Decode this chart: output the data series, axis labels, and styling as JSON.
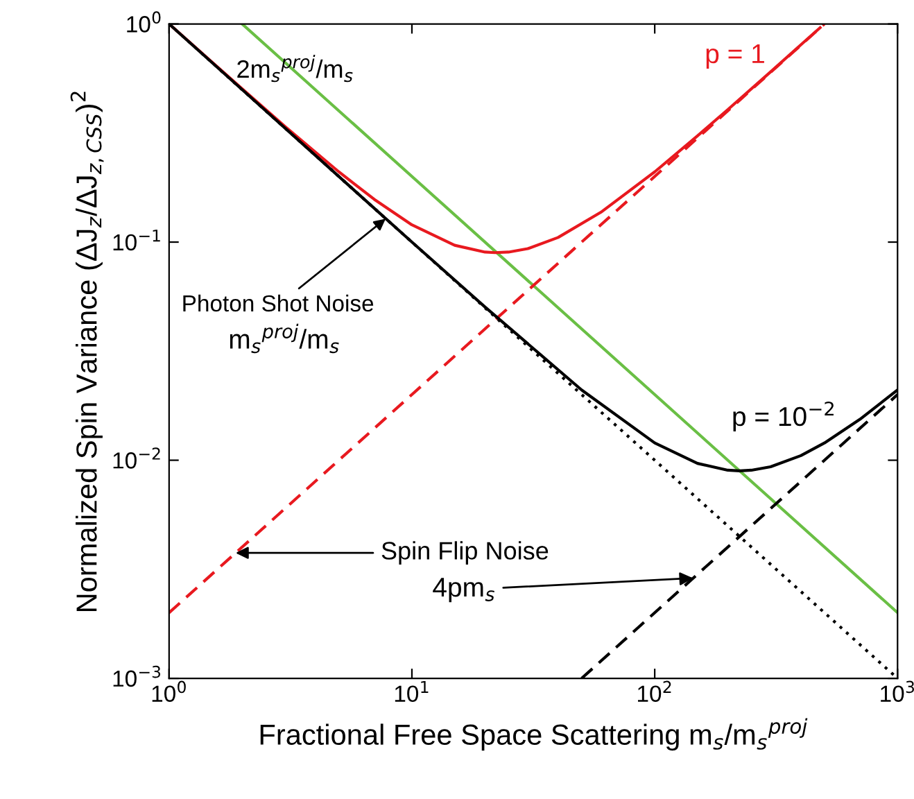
{
  "chart_data": {
    "type": "line",
    "xlabel": "Fractional Free Space Scattering m$_{s}$/m$_{s}$$^{proj}$",
    "ylabel": "Normalized Spin Variance (ΔJ$_{z}$/ΔJ$_{z,CSS}$)$^{2}$",
    "log": "xy",
    "grid": false,
    "legend": false,
    "marker": "none",
    "xlim": [
      1,
      1000
    ],
    "ylim": [
      0.001,
      1
    ],
    "xticks": [
      {
        "value": 1,
        "label": "10$^{0}$"
      },
      {
        "value": 10,
        "label": "10$^{1}$"
      },
      {
        "value": 100,
        "label": "10$^{2}$"
      },
      {
        "value": 1000,
        "label": "10$^{3}$"
      }
    ],
    "yticks": [
      {
        "value": 0.001,
        "label": "10$^{−3}$"
      },
      {
        "value": 0.01,
        "label": "10$^{−2}$"
      },
      {
        "value": 0.1,
        "label": "10$^{−1}$"
      },
      {
        "value": 1,
        "label": "10$^{0}$"
      }
    ],
    "series": [
      {
        "color": "#000000",
        "line_style": "dotted",
        "x": [
          1,
          1000
        ],
        "values": [
          1,
          0.001
        ]
      },
      {
        "color": "#6abf45",
        "line_style": "solid",
        "x": [
          2,
          1000
        ],
        "values": [
          1,
          0.002
        ]
      },
      {
        "color": "#e8191f",
        "line_style": "dashed",
        "x": [
          1,
          500
        ],
        "values": [
          0.002,
          1
        ]
      },
      {
        "color": "#000000",
        "line_style": "dashed",
        "x": [
          50,
          1000
        ],
        "values": [
          0.001,
          0.02
        ]
      },
      {
        "color": "#e8191f",
        "line_style": "solid",
        "x": [
          1,
          1.5,
          2,
          3,
          5,
          7,
          10,
          15,
          20,
          22,
          25,
          30,
          40,
          60,
          100,
          150,
          200,
          300,
          400,
          480
        ],
        "values": [
          1.0,
          0.67,
          0.504,
          0.339,
          0.21,
          0.157,
          0.12,
          0.0967,
          0.09,
          0.0895,
          0.09,
          0.0933,
          0.105,
          0.137,
          0.21,
          0.307,
          0.405,
          0.603,
          0.803,
          0.962
        ]
      },
      {
        "color": "#000000",
        "line_style": "solid",
        "x": [
          1,
          2,
          5,
          10,
          20,
          50,
          100,
          150,
          200,
          224,
          250,
          300,
          400,
          500,
          700,
          1000
        ],
        "values": [
          1.0,
          0.5,
          0.2,
          0.1,
          0.0504,
          0.021,
          0.012,
          0.00967,
          0.009,
          0.00894,
          0.009,
          0.00933,
          0.0105,
          0.012,
          0.0154,
          0.021
        ]
      }
    ],
    "annotations": [
      {
        "text": "2m$_{s}$$^{proj}$/m$_{s}$",
        "x": 3.3,
        "y": 0.62
      },
      "p = 1",
      "p = 10$^{−2}$",
      {
        "text": "Photon Shot Noise",
        "x": 7.8,
        "y": 0.128
      },
      "m$_{s}$$^{proj}$/m$_{s}$",
      {
        "text": "Spin Flip Noise",
        "x": 1.88,
        "y": 0.00376
      },
      {
        "text": "4pm$_{s}$",
        "x": 144,
        "y": 0.00288
      }
    ]
  }
}
